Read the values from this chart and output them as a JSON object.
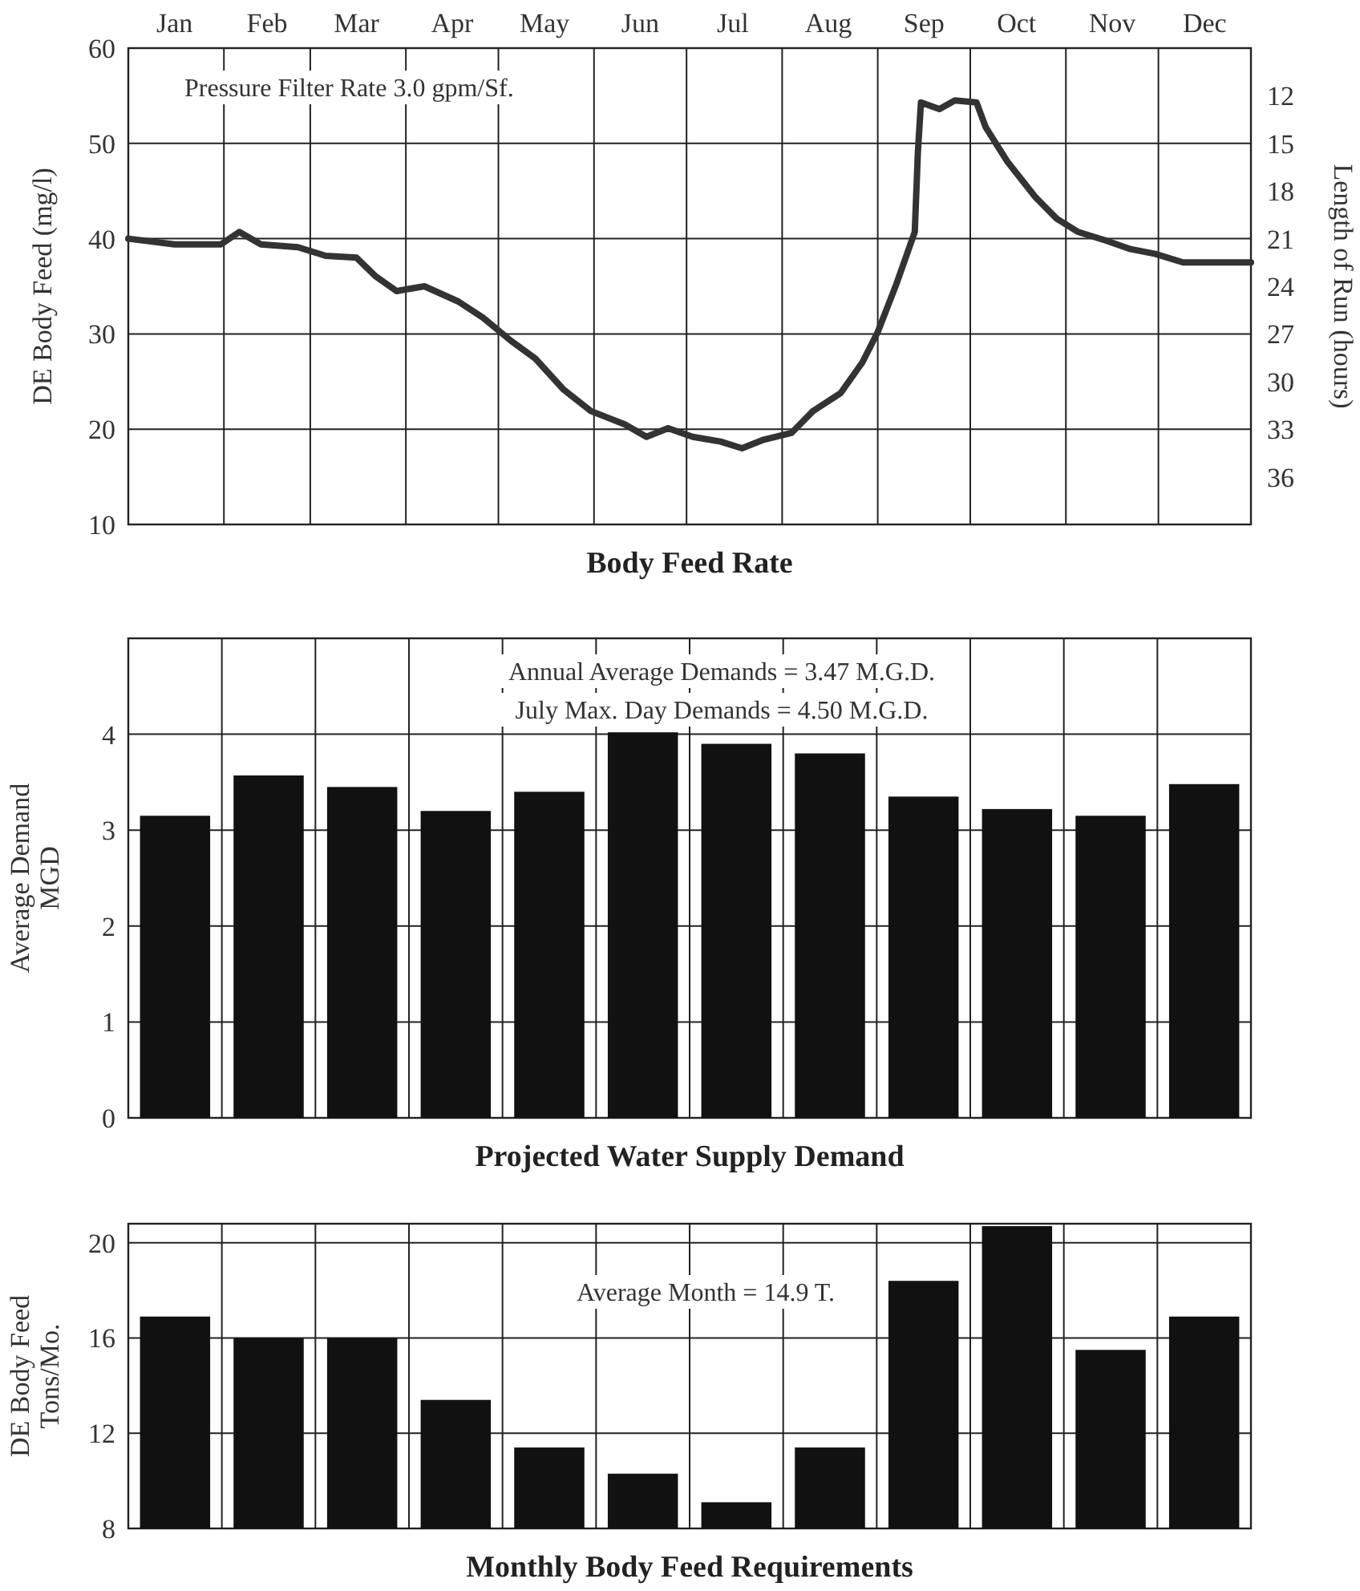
{
  "chart_data": [
    {
      "type": "line",
      "title": "Body Feed Rate",
      "ylabel": "DE Body Feed (mg/l)",
      "y2label": "Length of Run (hours)",
      "annotations": [
        "Pressure Filter Rate 3.0 gpm/Sf."
      ],
      "xlim": [
        "--01-01",
        "--12-31"
      ],
      "xticks": [
        {
          "value": "--01-01",
          "label": null
        },
        {
          "value": "--01-16",
          "label": "Jan"
        },
        {
          "value": "--02-01",
          "label": null
        },
        {
          "value": "--02-15",
          "label": "Feb"
        },
        {
          "value": "--03-01",
          "label": null
        },
        {
          "value": "--03-16",
          "label": "Mar"
        },
        {
          "value": "--04-01",
          "label": null
        },
        {
          "value": "--04-16",
          "label": "Apr"
        },
        {
          "value": "--05-01",
          "label": null
        },
        {
          "value": "--05-16",
          "label": "May"
        },
        {
          "value": "--06-01",
          "label": null
        },
        {
          "value": "--06-16",
          "label": "Jun"
        },
        {
          "value": "--07-01",
          "label": null
        },
        {
          "value": "--07-16",
          "label": "Jul"
        },
        {
          "value": "--08-01",
          "label": null
        },
        {
          "value": "--08-16",
          "label": "Aug"
        },
        {
          "value": "--09-01",
          "label": null
        },
        {
          "value": "--09-16",
          "label": "Sep"
        },
        {
          "value": "--10-01",
          "label": null
        },
        {
          "value": "--10-16",
          "label": "Oct"
        },
        {
          "value": "--11-01",
          "label": null
        },
        {
          "value": "--11-16",
          "label": "Nov"
        },
        {
          "value": "--12-01",
          "label": null
        },
        {
          "value": "--12-16",
          "label": "Dec"
        },
        {
          "value": "--12-31",
          "label": null
        }
      ],
      "ylim": [
        10,
        60
      ],
      "yticks": [
        10,
        20,
        30,
        40,
        50,
        60
      ],
      "y2lim": [
        39,
        9
      ],
      "y2ticks": [
        12,
        15,
        18,
        21,
        24,
        27,
        30,
        33,
        36
      ],
      "grid": true,
      "line_style": "solid",
      "series": [
        {
          "color": "#333333",
          "x": [
            "--01-01",
            "--01-16",
            "--01-31",
            "--02-06",
            "--02-13",
            "--02-25",
            "--03-06",
            "--03-16",
            "--03-22",
            "--03-29",
            "--04-07",
            "--04-18",
            "--04-26",
            "--05-05",
            "--05-13",
            "--05-22",
            "--05-31",
            "--06-11",
            "--06-18",
            "--06-25",
            "--07-03",
            "--07-12",
            "--07-19",
            "--07-26",
            "--08-04",
            "--08-11",
            "--08-20",
            "--08-27",
            "--09-01",
            "--09-07",
            "--09-13",
            "--09-14",
            "--09-15",
            "--09-21",
            "--09-26",
            "--10-03",
            "--10-06",
            "--10-13",
            "--10-22",
            "--10-29",
            "--11-05",
            "--11-14",
            "--11-22",
            "--11-30",
            "--12-09",
            "--12-20",
            "--12-31"
          ],
          "values": [
            40,
            39.4,
            39.4,
            40.7,
            39.4,
            39.1,
            38.2,
            38,
            36.1,
            34.5,
            35,
            33.4,
            31.7,
            29.3,
            27.4,
            24.2,
            21.9,
            20.5,
            19.2,
            20.1,
            19.2,
            18.7,
            18,
            18.9,
            19.6,
            21.9,
            23.8,
            27,
            30.2,
            35.2,
            40.7,
            49,
            54.3,
            53.6,
            54.5,
            54.3,
            51.7,
            48.1,
            44.4,
            42.1,
            40.7,
            39.8,
            38.9,
            38.4,
            37.5,
            37.5,
            37.5
          ]
        }
      ]
    },
    {
      "type": "bar",
      "title": "Projected Water Supply Demand",
      "ylabel": "Average Demand\nMGD",
      "annotations": [
        "Annual Average Demands = 3.47 M.G.D.",
        "July Max. Day Demands = 4.50 M.G.D."
      ],
      "categories": [
        null,
        null,
        null,
        null,
        null,
        null,
        null,
        null,
        null,
        null,
        null,
        null
      ],
      "ylim": [
        0,
        5
      ],
      "yticks": [
        0,
        1,
        2,
        3,
        4
      ],
      "grid": true,
      "series": [
        {
          "color": "#111111",
          "values": [
            3.15,
            3.57,
            3.45,
            3.2,
            3.4,
            4.02,
            3.9,
            3.8,
            3.35,
            3.22,
            3.15,
            3.48
          ]
        }
      ]
    },
    {
      "type": "bar",
      "title": "Monthly Body Feed Requirements",
      "ylabel": "DE Body Feed\nTons/Mo.",
      "annotations": [
        "Average Month = 14.9 T."
      ],
      "categories": [
        null,
        null,
        null,
        null,
        null,
        null,
        null,
        null,
        null,
        null,
        null,
        null
      ],
      "ylim": [
        8,
        20.8
      ],
      "yticks": [
        8,
        12,
        16,
        20
      ],
      "grid": true,
      "series": [
        {
          "color": "#111111",
          "values": [
            16.9,
            16,
            16,
            13.4,
            11.4,
            10.3,
            9.1,
            11.4,
            18.4,
            20.7,
            15.5,
            16.9
          ]
        }
      ]
    }
  ]
}
